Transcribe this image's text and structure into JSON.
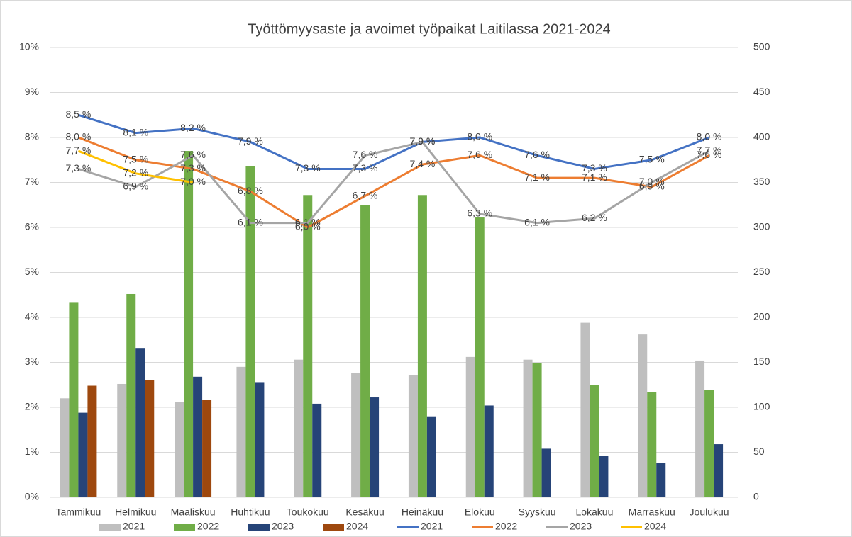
{
  "chart_data": {
    "type": "bar_line",
    "title": "Työttömyysaste ja avoimet työpaikat Laitilassa 2021-2024",
    "categories": [
      "Tammikuu",
      "Helmikuu",
      "Maaliskuu",
      "Huhtikuu",
      "Toukokuu",
      "Kesäkuu",
      "Heinäkuu",
      "Elokuu",
      "Syyskuu",
      "Lokakuu",
      "Marraskuu",
      "Joulukuu"
    ],
    "ylim": [
      0,
      10
    ],
    "yticks": [
      {
        "value": 0,
        "label": "0%"
      },
      {
        "value": 1,
        "label": "1%"
      },
      {
        "value": 2,
        "label": "2%"
      },
      {
        "value": 3,
        "label": "3%"
      },
      {
        "value": 4,
        "label": "4%"
      },
      {
        "value": 5,
        "label": "5%"
      },
      {
        "value": 6,
        "label": "6%"
      },
      {
        "value": 7,
        "label": "7%"
      },
      {
        "value": 8,
        "label": "8%"
      },
      {
        "value": 9,
        "label": "9%"
      },
      {
        "value": 10,
        "label": "10%"
      }
    ],
    "y2lim": [
      0,
      500
    ],
    "y2ticks": [
      0,
      50,
      100,
      150,
      200,
      250,
      300,
      350,
      400,
      450,
      500
    ],
    "grid": true,
    "legend": "bottom",
    "series": [
      {
        "name": "2021",
        "type": "bar",
        "axis": "y2",
        "color": "#bfbfbf",
        "values": [
          110,
          126,
          106,
          145,
          153,
          138,
          136,
          156,
          153,
          194,
          181,
          152
        ]
      },
      {
        "name": "2022",
        "type": "bar",
        "axis": "y2",
        "color": "#70ad47",
        "values": [
          217,
          226,
          385,
          368,
          336,
          325,
          336,
          311,
          149,
          125,
          117,
          119
        ]
      },
      {
        "name": "2023",
        "type": "bar",
        "axis": "y2",
        "color": "#264478",
        "values": [
          94,
          166,
          134,
          128,
          104,
          111,
          90,
          102,
          54,
          46,
          38,
          59
        ]
      },
      {
        "name": "2024",
        "type": "bar",
        "axis": "y2",
        "color": "#9e480e",
        "values": [
          124,
          130,
          108,
          null,
          null,
          null,
          null,
          null,
          null,
          null,
          null,
          null
        ]
      },
      {
        "name": "2021",
        "type": "line",
        "color": "#4472c4",
        "values": [
          8.5,
          8.1,
          8.2,
          7.9,
          7.3,
          7.3,
          7.9,
          8.0,
          7.6,
          7.3,
          7.5,
          8.0
        ],
        "value_labels": [
          "8,5 %",
          "8,1 %",
          "8,2 %",
          "7,9 %",
          "7,3 %",
          "7,3 %",
          "7,9 %",
          "8,0 %",
          "7,6 %",
          "7,3 %",
          "7,5 %",
          "8,0 %"
        ]
      },
      {
        "name": "2022",
        "type": "line",
        "color": "#ed7d31",
        "values": [
          8.0,
          7.5,
          7.3,
          6.8,
          6.0,
          6.7,
          7.4,
          7.6,
          7.1,
          7.1,
          6.9,
          7.6
        ],
        "value_labels": [
          "8,0 %",
          "7,5 %",
          "7,3 %",
          "6,8 %",
          "6,0 %",
          "6,7 %",
          "7,4 %",
          "7,6 %",
          "7,1 %",
          "7,1 %",
          "6,9 %",
          "7,6 %"
        ]
      },
      {
        "name": "2023",
        "type": "line",
        "color": "#a5a5a5",
        "values": [
          7.3,
          6.9,
          7.6,
          6.1,
          6.1,
          7.6,
          7.9,
          6.3,
          6.1,
          6.2,
          7.0,
          7.7
        ],
        "value_labels": [
          "7,3 %",
          "6,9 %",
          "7,6 %",
          "6,1 %",
          "6,1 %",
          "7,6 %",
          "7,9 %",
          "6,3 %",
          "6,1 %",
          "6,2 %",
          "7,0 %",
          "7,7 %"
        ]
      },
      {
        "name": "2024",
        "type": "line",
        "color": "#ffc000",
        "values": [
          7.7,
          7.2,
          7.0,
          null,
          null,
          null,
          null,
          null,
          null,
          null,
          null,
          null
        ],
        "value_labels": [
          "7,7 %",
          "7,2 %",
          "7,0 %",
          null,
          null,
          null,
          null,
          null,
          null,
          null,
          null,
          null
        ]
      }
    ]
  }
}
